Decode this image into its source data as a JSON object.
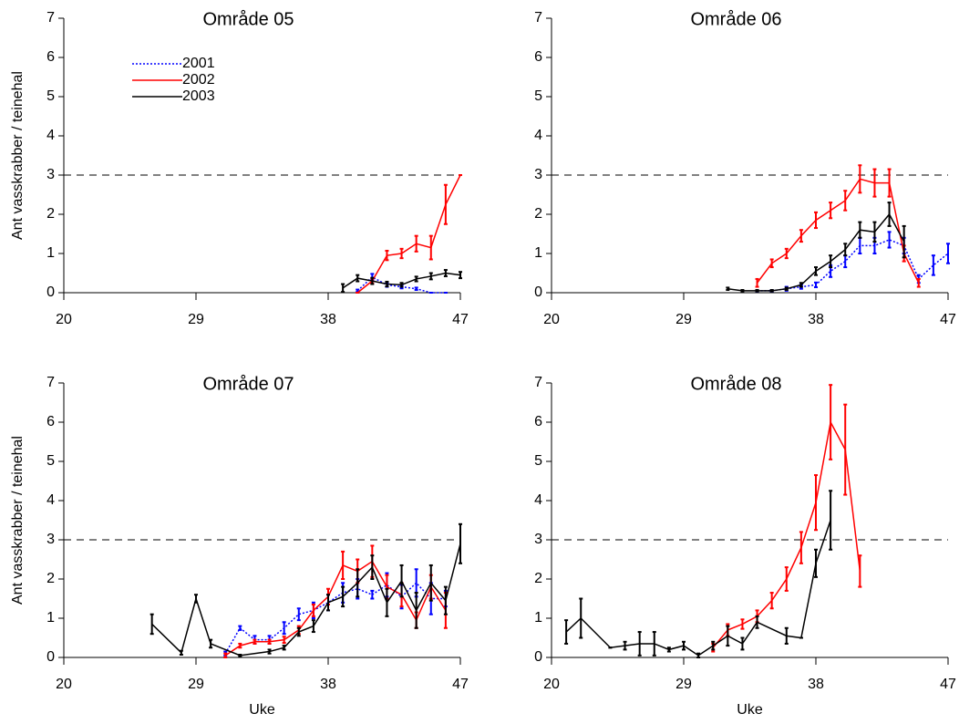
{
  "chart_data": [
    {
      "type": "line",
      "title": "Område 05",
      "y_label": "Ant vasskrabber / teinehal",
      "xlim": [
        20,
        47
      ],
      "xticks": [
        20,
        29,
        38,
        47
      ],
      "ylim": [
        0,
        7
      ],
      "yticks": [
        0,
        1,
        2,
        3,
        4,
        5,
        6,
        7
      ],
      "hline": 3,
      "legend": "upper left",
      "series": [
        {
          "name": "2001",
          "color": "#0000ff",
          "linestyle": "dotted",
          "x": [
            40,
            41,
            42,
            43,
            44,
            45,
            46
          ],
          "values": [
            0.05,
            0.4,
            0.2,
            0.15,
            0.1,
            0,
            0
          ],
          "errors": [
            0.03,
            0.08,
            0.05,
            0.04,
            0.03,
            0,
            0
          ]
        },
        {
          "name": "2002",
          "color": "#ff0000",
          "linestyle": "solid",
          "x": [
            40,
            41,
            42,
            43,
            44,
            45,
            46,
            47
          ],
          "values": [
            0,
            0.3,
            0.95,
            1.0,
            1.25,
            1.15,
            2.25,
            3.0
          ],
          "errors": [
            0,
            0.06,
            0.12,
            0.12,
            0.2,
            0.3,
            0.5,
            0
          ]
        },
        {
          "name": "2003",
          "color": "#000000",
          "linestyle": "solid",
          "x": [
            39,
            40,
            41,
            42,
            43,
            44,
            45,
            46,
            47
          ],
          "values": [
            0.12,
            0.37,
            0.3,
            0.22,
            0.2,
            0.35,
            0.42,
            0.5,
            0.45
          ],
          "errors": [
            0.1,
            0.08,
            0.08,
            0.06,
            0.05,
            0.06,
            0.08,
            0.08,
            0.08
          ]
        }
      ]
    },
    {
      "type": "line",
      "title": "Område 06",
      "xlim": [
        20,
        47
      ],
      "xticks": [
        20,
        29,
        38,
        47
      ],
      "ylim": [
        0,
        7
      ],
      "yticks": [
        0,
        1,
        2,
        3,
        4,
        5,
        6,
        7
      ],
      "hline": 3,
      "series": [
        {
          "color": "#0000ff",
          "linestyle": "dotted",
          "x": [
            34,
            35,
            36,
            37,
            38,
            39,
            40,
            41,
            42,
            43,
            44,
            45,
            46,
            47
          ],
          "values": [
            0.05,
            0.05,
            0.1,
            0.15,
            0.2,
            0.55,
            0.8,
            1.2,
            1.2,
            1.35,
            1.2,
            0.35,
            0.7,
            1.0
          ],
          "errors": [
            0.02,
            0.02,
            0.05,
            0.05,
            0.06,
            0.15,
            0.15,
            0.2,
            0.2,
            0.2,
            0.2,
            0.1,
            0.25,
            0.25
          ]
        },
        {
          "color": "#ff0000",
          "linestyle": "solid",
          "x": [
            34,
            35,
            36,
            37,
            38,
            39,
            40,
            41,
            42,
            43,
            44,
            45
          ],
          "values": [
            0.25,
            0.75,
            1.0,
            1.45,
            1.85,
            2.1,
            2.35,
            2.9,
            2.8,
            2.8,
            1.0,
            0.25
          ],
          "errors": [
            0.1,
            0.1,
            0.12,
            0.15,
            0.2,
            0.2,
            0.25,
            0.35,
            0.35,
            0.35,
            0.2,
            0.1
          ]
        },
        {
          "color": "#000000",
          "linestyle": "solid",
          "x": [
            32,
            33,
            34,
            35,
            36,
            37,
            38,
            39,
            40,
            41,
            42,
            43,
            44
          ],
          "values": [
            0.1,
            0.05,
            0.05,
            0.05,
            0.1,
            0.2,
            0.55,
            0.8,
            1.1,
            1.6,
            1.55,
            2.0,
            1.3
          ],
          "errors": [
            0.03,
            0.02,
            0.02,
            0.02,
            0.03,
            0.05,
            0.1,
            0.15,
            0.15,
            0.2,
            0.25,
            0.3,
            0.4
          ]
        }
      ]
    },
    {
      "type": "line",
      "title": "Område 07",
      "y_label": "Ant vasskrabber / teinehal",
      "x_label": "Uke",
      "xlim": [
        20,
        47
      ],
      "xticks": [
        20,
        29,
        38,
        47
      ],
      "ylim": [
        0,
        7
      ],
      "yticks": [
        0,
        1,
        2,
        3,
        4,
        5,
        6,
        7
      ],
      "hline": 3,
      "series": [
        {
          "color": "#0000ff",
          "linestyle": "dotted",
          "x": [
            31,
            32,
            33,
            34,
            35,
            36,
            37,
            38,
            39,
            40,
            41,
            42,
            43,
            44,
            45,
            46
          ],
          "values": [
            0.1,
            0.75,
            0.45,
            0.45,
            0.75,
            1.1,
            1.2,
            1.4,
            1.65,
            1.75,
            1.6,
            1.85,
            1.55,
            1.9,
            1.5,
            1.5
          ],
          "errors": [
            0.05,
            0.05,
            0.1,
            0.1,
            0.15,
            0.15,
            0.2,
            0.2,
            0.25,
            0.25,
            0.1,
            0.3,
            0.3,
            0.35,
            0.4,
            0.2
          ]
        },
        {
          "color": "#ff0000",
          "linestyle": "solid",
          "x": [
            31,
            32,
            33,
            34,
            35,
            36,
            37,
            38,
            39,
            40,
            41,
            42,
            43,
            44,
            45,
            46
          ],
          "values": [
            0.05,
            0.3,
            0.4,
            0.4,
            0.45,
            0.7,
            1.2,
            1.55,
            2.35,
            2.2,
            2.45,
            1.8,
            1.6,
            0.95,
            1.8,
            1.2
          ],
          "errors": [
            0.05,
            0.05,
            0.05,
            0.05,
            0.08,
            0.1,
            0.15,
            0.2,
            0.35,
            0.3,
            0.4,
            0.3,
            0.3,
            0.2,
            0.3,
            0.45
          ]
        },
        {
          "color": "#000000",
          "linestyle": "solid",
          "x": [
            26,
            28,
            29,
            30,
            32,
            34,
            35,
            36,
            37,
            38,
            39,
            40,
            41,
            42,
            43,
            44,
            45,
            46,
            47
          ],
          "values": [
            0.85,
            0.12,
            1.5,
            0.35,
            0.05,
            0.15,
            0.25,
            0.65,
            0.8,
            1.4,
            1.55,
            1.9,
            2.3,
            1.4,
            1.95,
            1.2,
            1.9,
            1.45,
            2.9
          ],
          "errors": [
            0.25,
            0.05,
            0.1,
            0.1,
            0.02,
            0.05,
            0.05,
            0.1,
            0.15,
            0.2,
            0.25,
            0.35,
            0.3,
            0.35,
            0.4,
            0.45,
            0.45,
            0.35,
            0.5
          ]
        }
      ]
    },
    {
      "type": "line",
      "title": "Område 08",
      "x_label": "Uke",
      "xlim": [
        20,
        47
      ],
      "xticks": [
        20,
        29,
        38,
        47
      ],
      "ylim": [
        0,
        7
      ],
      "yticks": [
        0,
        1,
        2,
        3,
        4,
        5,
        6,
        7
      ],
      "hline": 3,
      "series": [
        {
          "color": "#ff0000",
          "linestyle": "solid",
          "x": [
            31,
            32,
            33,
            34,
            35,
            36,
            37,
            38,
            39,
            40,
            41
          ],
          "values": [
            0.25,
            0.7,
            0.85,
            1.05,
            1.45,
            2.0,
            2.8,
            3.95,
            6.0,
            5.3,
            2.2
          ],
          "errors": [
            0.1,
            0.15,
            0.12,
            0.15,
            0.2,
            0.3,
            0.4,
            0.7,
            0.95,
            1.15,
            0.4
          ]
        },
        {
          "color": "#000000",
          "linestyle": "solid",
          "x": [
            21,
            22,
            24,
            25,
            26,
            27,
            28,
            29,
            30,
            31,
            32,
            33,
            34,
            36,
            37,
            38,
            39
          ],
          "values": [
            0.65,
            1.0,
            0.25,
            0.3,
            0.35,
            0.35,
            0.2,
            0.3,
            0.05,
            0.3,
            0.55,
            0.35,
            0.9,
            0.55,
            0.5,
            2.4,
            3.5
          ],
          "errors": [
            0.3,
            0.5,
            0,
            0.1,
            0.3,
            0.3,
            0.05,
            0.1,
            0.05,
            0.1,
            0.25,
            0.15,
            0.15,
            0.2,
            0,
            0.35,
            0.75
          ]
        }
      ]
    }
  ]
}
